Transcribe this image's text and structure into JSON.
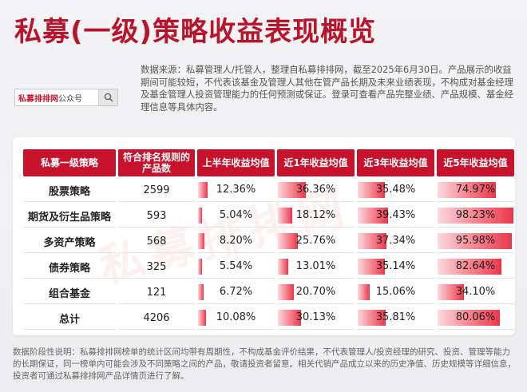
{
  "title": "私募(一级)策略收益表现概览",
  "search": {
    "brand": "私募排排网",
    "suffix": "公众号",
    "icon": "search-icon"
  },
  "intro": "数据来源：私募管理人/托管人，整理自私募排排网，截至2025年6月30日。产品展示的收益期间可能较短，不代表该基金及管理人其他在管产品长期及未来业绩表现，不构成对基金经理及基金管理人投资管理能力的任何预测或保证。登录可查看产品完整业绩、产品规模、基金经理信息等具体内容。",
  "watermark": "私募排排网",
  "table": {
    "headers": [
      "私募一级策略",
      "符合排名规则的产品数",
      "上半年收益均值",
      "近1年收益均值",
      "近3年收益均值",
      "近5年收益均值"
    ],
    "rows": [
      {
        "name": "股票策略",
        "count": "2599",
        "h1": "12.36%",
        "y1": "36.36%",
        "y3": "35.48%",
        "y5": "74.97%"
      },
      {
        "name": "期货及衍生品策略",
        "count": "593",
        "h1": "5.04%",
        "y1": "18.12%",
        "y3": "39.43%",
        "y5": "98.23%"
      },
      {
        "name": "多资产策略",
        "count": "568",
        "h1": "8.20%",
        "y1": "25.76%",
        "y3": "37.34%",
        "y5": "95.98%"
      },
      {
        "name": "债券策略",
        "count": "325",
        "h1": "5.54%",
        "y1": "13.01%",
        "y3": "35.14%",
        "y5": "82.64%"
      },
      {
        "name": "组合基金",
        "count": "121",
        "h1": "6.72%",
        "y1": "20.70%",
        "y3": "15.06%",
        "y5": "34.10%"
      },
      {
        "name": "总计",
        "count": "4206",
        "h1": "10.08%",
        "y1": "30.13%",
        "y3": "35.81%",
        "y5": "80.06%"
      }
    ]
  },
  "footer": "数据阶段性说明：私募排排网榜单的统计区间均带有周期性，不构成基金评价结果，不代表管理人/投资经理的研究、投资、管理等能力的长期保证，同一榜单内可能会涉及不同策略之间的产品，敬请投资者留意。相关代销产品成立以来的历史净值、历史规模等详细信息，投资者可通过私募排排网产品详情页进行了解。"
}
